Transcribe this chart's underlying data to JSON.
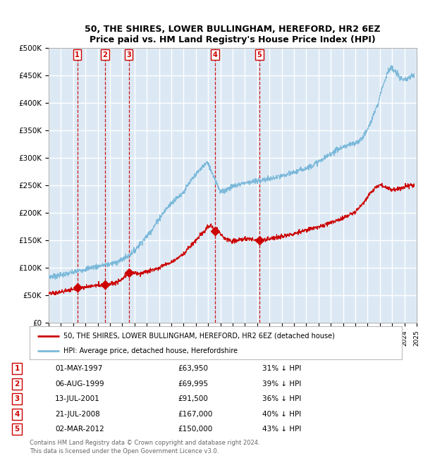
{
  "title": "50, THE SHIRES, LOWER BULLINGHAM, HEREFORD, HR2 6EZ",
  "subtitle": "Price paid vs. HM Land Registry's House Price Index (HPI)",
  "sales": [
    {
      "num": 1,
      "date_str": "01-MAY-1997",
      "date_x": 1997.33,
      "price": 63950,
      "pct": "31% ↓ HPI"
    },
    {
      "num": 2,
      "date_str": "06-AUG-1999",
      "date_x": 1999.59,
      "price": 69995,
      "pct": "39% ↓ HPI"
    },
    {
      "num": 3,
      "date_str": "13-JUL-2001",
      "date_x": 2001.53,
      "price": 91500,
      "pct": "36% ↓ HPI"
    },
    {
      "num": 4,
      "date_str": "21-JUL-2008",
      "date_x": 2008.55,
      "price": 167000,
      "pct": "40% ↓ HPI"
    },
    {
      "num": 5,
      "date_str": "02-MAR-2012",
      "date_x": 2012.17,
      "price": 150000,
      "pct": "43% ↓ HPI"
    }
  ],
  "hpi_color": "#7ab8d9",
  "price_color": "#cc0000",
  "dashed_line_color": "#cc0000",
  "background_color": "#dce9f5",
  "grid_color": "#ffffff",
  "ylim": [
    0,
    500000
  ],
  "xlim": [
    1995,
    2025
  ],
  "yticks": [
    0,
    50000,
    100000,
    150000,
    200000,
    250000,
    300000,
    350000,
    400000,
    450000,
    500000
  ],
  "ytick_labels": [
    "£0",
    "£50K",
    "£100K",
    "£150K",
    "£200K",
    "£250K",
    "£300K",
    "£350K",
    "£400K",
    "£450K",
    "£500K"
  ],
  "footer": "Contains HM Land Registry data © Crown copyright and database right 2024.\nThis data is licensed under the Open Government Licence v3.0.",
  "legend_label_price": "50, THE SHIRES, LOWER BULLINGHAM, HEREFORD, HR2 6EZ (detached house)",
  "legend_label_hpi": "HPI: Average price, detached house, Herefordshire"
}
